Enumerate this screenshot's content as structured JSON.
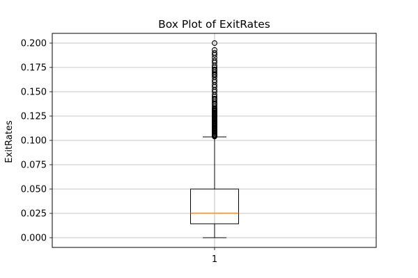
{
  "chart_data": {
    "type": "boxplot",
    "title": "Box Plot of ExitRates",
    "xlabel": "",
    "ylabel": "ExitRates",
    "categories": [
      "1"
    ],
    "ylim": [
      -0.01,
      0.21
    ],
    "yticks": [
      0.0,
      0.025,
      0.05,
      0.075,
      0.1,
      0.125,
      0.15,
      0.175,
      0.2
    ],
    "ytick_labels": [
      "0.000",
      "0.025",
      "0.050",
      "0.075",
      "0.100",
      "0.125",
      "0.150",
      "0.175",
      "0.200"
    ],
    "grid": true,
    "box": {
      "whisker_low": 0.0,
      "q1": 0.0143,
      "median": 0.0252,
      "q3": 0.05,
      "whisker_high": 0.1036
    },
    "outliers": [
      0.104,
      0.1045,
      0.105,
      0.106,
      0.107,
      0.108,
      0.109,
      0.11,
      0.111,
      0.112,
      0.113,
      0.114,
      0.115,
      0.116,
      0.117,
      0.118,
      0.119,
      0.12,
      0.121,
      0.122,
      0.123,
      0.124,
      0.125,
      0.126,
      0.127,
      0.128,
      0.129,
      0.13,
      0.131,
      0.132,
      0.133,
      0.135,
      0.137,
      0.138,
      0.14,
      0.142,
      0.143,
      0.145,
      0.147,
      0.15,
      0.152,
      0.155,
      0.157,
      0.16,
      0.162,
      0.165,
      0.167,
      0.168,
      0.17,
      0.172,
      0.173,
      0.175,
      0.177,
      0.18,
      0.182,
      0.185,
      0.188,
      0.19,
      0.193,
      0.2
    ],
    "colors": {
      "box": "#000000",
      "median": "#ff7f0e",
      "grid": "#b0b0b0"
    }
  }
}
